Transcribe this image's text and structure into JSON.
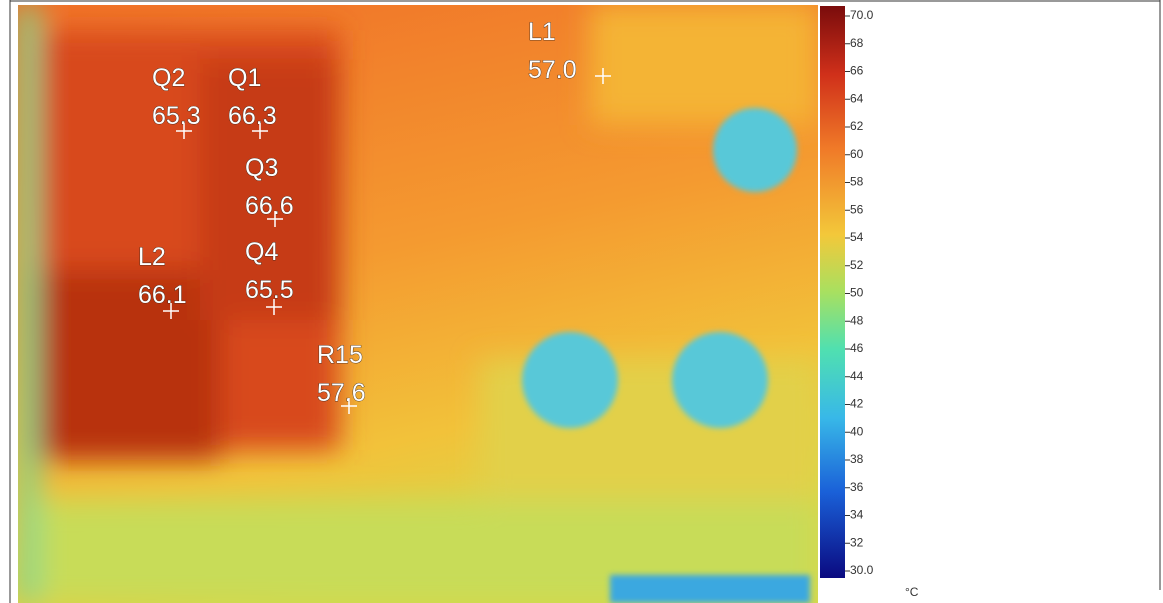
{
  "markers": [
    {
      "label": "L1",
      "value": "57.0"
    },
    {
      "label": "Q2",
      "value": "65.3"
    },
    {
      "label": "Q1",
      "value": "66.3"
    },
    {
      "label": "Q3",
      "value": "66.6"
    },
    {
      "label": "L2",
      "value": "66.1"
    },
    {
      "label": "Q4",
      "value": "65.5"
    },
    {
      "label": "R15",
      "value": "57.6"
    }
  ],
  "colorbar": {
    "ticks": [
      "70.0",
      "68",
      "66",
      "64",
      "62",
      "60",
      "58",
      "56",
      "54",
      "52",
      "50",
      "48",
      "46",
      "44",
      "42",
      "40",
      "38",
      "36",
      "34",
      "32",
      "30.0"
    ],
    "unit": "°C"
  }
}
